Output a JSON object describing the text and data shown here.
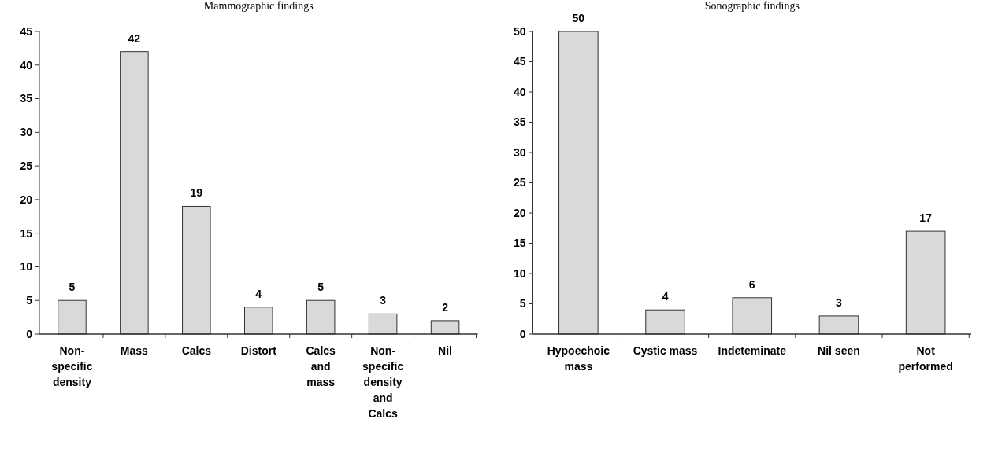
{
  "chart_data": [
    {
      "type": "bar",
      "title": "Mammographic findings",
      "categories": [
        "Non-specific density",
        "Mass",
        "Calcs",
        "Distort",
        "Calcs and mass",
        "Non-specific density and Calcs",
        "Nil"
      ],
      "values": [
        5,
        42,
        19,
        4,
        5,
        3,
        2
      ],
      "color": "#d9d9d9",
      "ylim": [
        0,
        45
      ],
      "yticks": [
        0,
        5,
        10,
        15,
        20,
        25,
        30,
        35,
        40,
        45
      ],
      "data_labels": true
    },
    {
      "type": "bar",
      "title": "Sonographic findings",
      "categories": [
        "Hypoechoic mass",
        "Cystic mass",
        "Indeteminate",
        "Nil seen",
        "Not performed"
      ],
      "values": [
        50,
        4,
        6,
        3,
        17
      ],
      "color": "#d9d9d9",
      "ylim": [
        0,
        50
      ],
      "yticks": [
        0,
        5,
        10,
        15,
        20,
        25,
        30,
        35,
        40,
        45,
        50
      ],
      "data_labels": true
    }
  ]
}
